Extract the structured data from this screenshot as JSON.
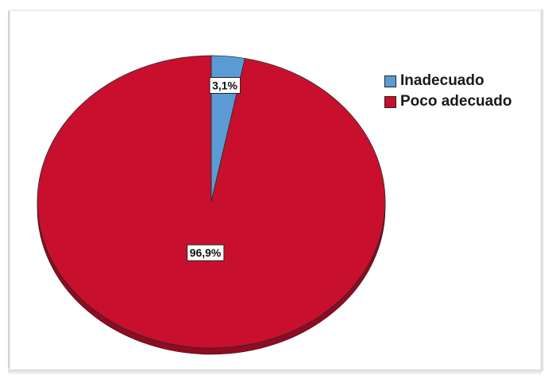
{
  "chart_data": {
    "type": "pie",
    "categories": [
      "Inadecuado",
      "Poco adecuado"
    ],
    "values": [
      3.1,
      96.9
    ],
    "data_labels": [
      "3,1%",
      "96,9%"
    ],
    "colors": [
      "#5b9bd5",
      "#c8102e"
    ],
    "edge_colors": [
      "#3a6fa3",
      "#8e0b22"
    ],
    "legend_position": "top-right",
    "start_angle": "top, clockwise",
    "style": "3D tilted"
  },
  "legend": {
    "items": [
      {
        "label": "Inadecuado",
        "color": "#5b9bd5"
      },
      {
        "label": "Poco adecuado",
        "color": "#c8102e"
      }
    ]
  }
}
